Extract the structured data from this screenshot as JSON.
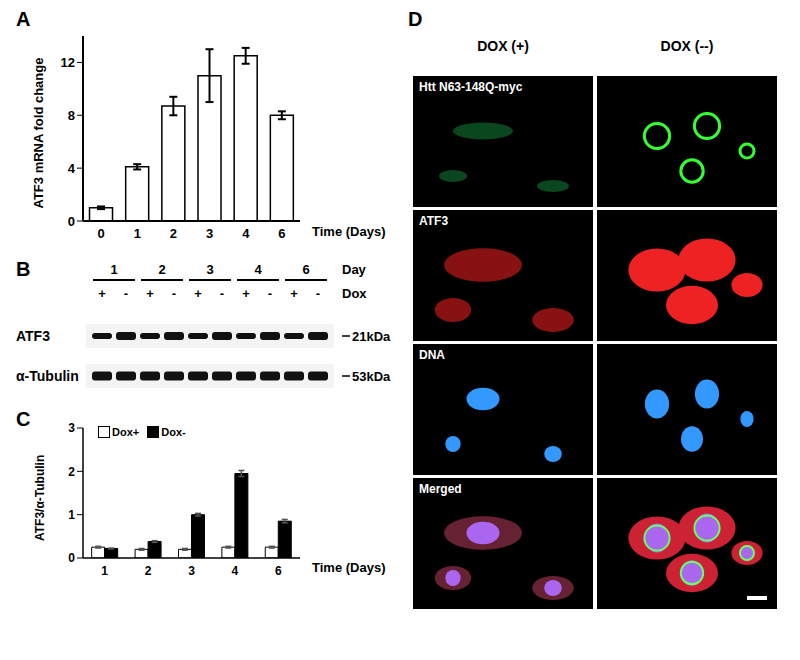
{
  "chart_data": [
    {
      "type": "bar",
      "title": "A",
      "ylabel": "ATF3 mRNA fold change",
      "xlabel": "Time (Days)",
      "categories": [
        "0",
        "1",
        "2",
        "3",
        "4",
        "6"
      ],
      "values": [
        1,
        4.1,
        8.7,
        11,
        12.5,
        8
      ],
      "errors": [
        0.1,
        0.2,
        0.7,
        2,
        0.6,
        0.3
      ],
      "color": "#ffffff",
      "ylim": [
        0,
        14
      ],
      "yticks": [
        0,
        4,
        8,
        12
      ],
      "grid": false
    },
    {
      "type": "bar",
      "title": "C",
      "ylabel": "ATF3/α-Tubulin",
      "xlabel": "Time (Days)",
      "categories": [
        "1",
        "2",
        "3",
        "4",
        "6"
      ],
      "series": [
        {
          "name": "Dox+",
          "color": "#ffffff",
          "values": [
            0.25,
            0.2,
            0.2,
            0.25,
            0.25
          ],
          "errors": [
            0.02,
            0.02,
            0.02,
            0.02,
            0.02
          ]
        },
        {
          "name": "Dox-",
          "color": "#000000",
          "values": [
            0.22,
            0.38,
            1.0,
            1.95,
            0.85
          ],
          "errors": [
            0.01,
            0.02,
            0.03,
            0.07,
            0.04
          ]
        }
      ],
      "ylim": [
        0,
        3
      ],
      "yticks": [
        0,
        1,
        2,
        3
      ],
      "legend": "top-left",
      "grid": false
    }
  ],
  "blot": {
    "label": "B",
    "days_title": "Day",
    "dox_title": "Dox",
    "days": [
      "1",
      "2",
      "3",
      "4",
      "6"
    ],
    "dox": [
      "+",
      "-"
    ],
    "bands": [
      {
        "name": "ATF3",
        "size": "21kDa"
      },
      {
        "name": "α-Tubulin",
        "size": "53kDa"
      }
    ]
  },
  "images": {
    "label": "D",
    "columns": [
      "DOX (+)",
      "DOX (--)"
    ],
    "rows": [
      "Htt N63-148Q-myc",
      "ATF3",
      "DNA",
      "Merged"
    ]
  }
}
